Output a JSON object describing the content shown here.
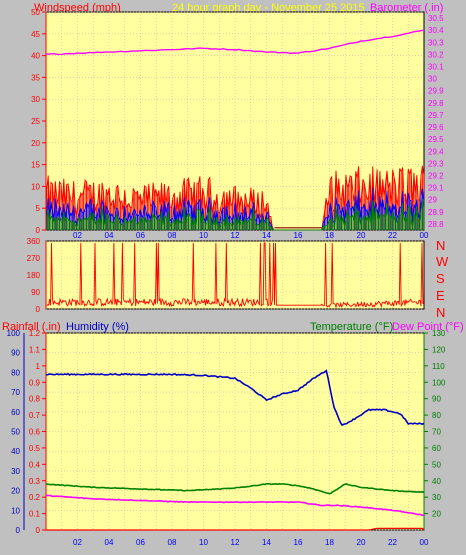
{
  "header": {
    "windspeed_label": "Windspeed (mph)",
    "center_title": "24 hour graph day - November 25 2015",
    "barometer_label": "Barometer (.in)"
  },
  "lower_header": {
    "rainfall_label": "Rainfall (.in)",
    "humidity_label": "Humidity (%)",
    "temperature_label": "Temperature (°F)",
    "dewpoint_label": "Dew Point (°F)"
  },
  "compass": [
    "N",
    "W",
    "S",
    "E",
    "N"
  ],
  "x_ticks": [
    "02",
    "04",
    "06",
    "08",
    "10",
    "12",
    "14",
    "16",
    "18",
    "20",
    "22",
    "00"
  ],
  "colors": {
    "panel_bg": "#ffffa0",
    "frame_bg": "#c0c0c0",
    "wind_gust": "#ff0000",
    "wind_avg": "#0000ff",
    "wind_low": "#008000",
    "barometer": "#ff00ff",
    "direction": "#ff0000",
    "humidity": "#0000c0",
    "temperature": "#008000",
    "dewpoint": "#ff00ff",
    "rainfall": "#ff0000",
    "axis_left": "#ff0000",
    "axis_right": "#008000",
    "title_yellow": "#ffff00"
  },
  "chart_data": [
    {
      "type": "line",
      "panel": "wind-barometer",
      "x_range": [
        0,
        24
      ],
      "y_left_ticks": [
        0,
        5,
        10,
        15,
        20,
        25,
        30,
        35,
        40,
        45,
        50
      ],
      "y_left_range": [
        0,
        50
      ],
      "y_right_ticks": [
        "28.8",
        "28.9",
        "29",
        "29.1",
        "29.2",
        "29.3",
        "29.4",
        "29.5",
        "29.6",
        "29.7",
        "29.8",
        "29.9",
        "30",
        "30.1",
        "30.2",
        "30.3",
        "30.4",
        "30.5"
      ],
      "y_right_range": [
        28.75,
        30.55
      ],
      "series": [
        {
          "name": "Windspeed",
          "color": "#ff0000",
          "x": [
            0,
            2,
            4,
            6,
            8,
            10,
            12,
            14,
            14.5,
            15,
            17.5,
            18,
            20,
            22,
            24
          ],
          "values": [
            12,
            11,
            12,
            10,
            11,
            12,
            10,
            9,
            0,
            0,
            0,
            13,
            14,
            14,
            15
          ]
        },
        {
          "name": "Barometer",
          "color": "#ff00ff",
          "x": [
            0,
            2,
            4,
            6,
            8,
            10,
            12,
            14,
            16,
            18,
            20,
            22,
            24
          ],
          "values": [
            30.2,
            30.21,
            30.22,
            30.23,
            30.24,
            30.25,
            30.24,
            30.22,
            30.21,
            30.25,
            30.31,
            30.35,
            30.4
          ]
        }
      ]
    },
    {
      "type": "line",
      "panel": "wind-direction",
      "x_range": [
        0,
        24
      ],
      "y_ticks": [
        "0",
        "90",
        "180",
        "270",
        "360"
      ],
      "y_range": [
        0,
        360
      ],
      "series": [
        {
          "name": "Direction",
          "color": "#ff0000",
          "x": [
            0,
            14.4,
            15,
            17.5,
            24
          ],
          "values": [
            40,
            40,
            20,
            20,
            40
          ]
        }
      ]
    },
    {
      "type": "line",
      "panel": "rain-humidity-temperature",
      "x_range": [
        0,
        24
      ],
      "y_left_ticks": [
        "0",
        "0.1",
        "0.2",
        "0.3",
        "0.4",
        "0.5",
        "0.6",
        "0.7",
        "0.8",
        "0.9",
        "1",
        "1.1",
        "1.2"
      ],
      "y_left_range": [
        0,
        1.2
      ],
      "y_humidity_ticks": [
        "0",
        "10",
        "20",
        "30",
        "40",
        "50",
        "60",
        "70",
        "80",
        "90",
        "100"
      ],
      "y_humidity_range": [
        0,
        100
      ],
      "y_right_ticks": [
        "20",
        "30",
        "40",
        "50",
        "60",
        "70",
        "80",
        "90",
        "100",
        "110",
        "120",
        "130"
      ],
      "y_right_range": [
        10,
        130
      ],
      "series": [
        {
          "name": "Humidity",
          "color": "#0000c0",
          "x": [
            0,
            4,
            8,
            10,
            12,
            13,
            14,
            15,
            16,
            17,
            17.8,
            18.3,
            18.8,
            19.5,
            20.5,
            21.5,
            22.5,
            23,
            24
          ],
          "values": [
            79,
            79,
            79,
            78.5,
            77,
            72,
            66,
            69,
            71,
            77,
            81,
            62,
            53,
            56,
            61,
            61,
            59,
            54,
            54
          ]
        },
        {
          "name": "Temperature",
          "color": "#008000",
          "x": [
            0,
            3,
            6,
            9,
            11,
            12.5,
            14,
            15,
            16,
            17,
            18,
            19,
            20,
            22,
            24
          ],
          "values": [
            38,
            36,
            35,
            34,
            35,
            36,
            38,
            38,
            37,
            35,
            32,
            38,
            36,
            34,
            33
          ]
        },
        {
          "name": "Dew Point",
          "color": "#ff00ff",
          "x": [
            0,
            3,
            6,
            9,
            12,
            14,
            16,
            17.5,
            18.5,
            20,
            22,
            24
          ],
          "values": [
            31,
            29,
            28,
            27,
            27,
            27,
            27,
            25,
            25,
            24,
            22,
            19
          ]
        },
        {
          "name": "Rainfall",
          "color": "#ff0000",
          "x": [
            0,
            20.5,
            21,
            23.9,
            24
          ],
          "values": [
            0,
            0,
            0.01,
            0.01,
            0
          ]
        }
      ]
    }
  ]
}
